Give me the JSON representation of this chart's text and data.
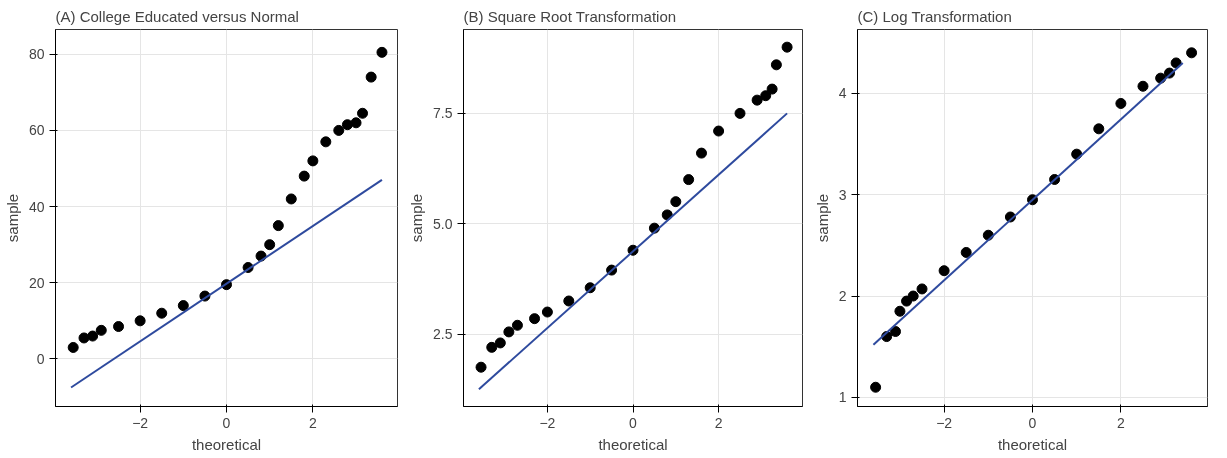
{
  "chart_data": [
    {
      "type": "scatter",
      "title": "(A) College Educated versus Normal",
      "xlabel": "theoretical",
      "ylabel": "sample",
      "xlim": [
        -3.96,
        3.96
      ],
      "ylim": [
        -12.5,
        86.5
      ],
      "xticks": [
        -2,
        0,
        2
      ],
      "yticks": [
        0,
        20,
        40,
        60,
        80
      ],
      "grid": true,
      "series": [
        {
          "marker": "circle",
          "color": "#000000",
          "x": [
            -3.55,
            -3.3,
            -3.1,
            -2.9,
            -2.5,
            -2,
            -1.5,
            -1,
            -0.5,
            0,
            0.5,
            0.8,
            1,
            1.2,
            1.5,
            1.8,
            2,
            2.3,
            2.6,
            2.8,
            3.0,
            3.15,
            3.35,
            3.6
          ],
          "values": [
            3,
            5.5,
            6,
            7.5,
            8.5,
            10,
            12,
            14,
            16.5,
            19.5,
            24,
            27,
            30,
            35,
            42,
            48,
            52,
            57,
            60,
            61.5,
            62,
            64.5,
            74,
            80.5
          ]
        },
        {
          "type": "line",
          "color": "#2e4a9e",
          "x": [
            -3.6,
            3.6
          ],
          "values": [
            -7.5,
            47
          ]
        }
      ]
    },
    {
      "type": "scatter",
      "title": "(B) Square Root Transformation",
      "xlabel": "theoretical",
      "ylabel": "sample",
      "xlim": [
        -3.96,
        3.96
      ],
      "ylim": [
        0.86,
        9.4
      ],
      "xticks": [
        -2,
        0,
        2
      ],
      "yticks": [
        2.5,
        {
          "value": 5,
          "label": "5.0"
        },
        7.5
      ],
      "grid": true,
      "series": [
        {
          "marker": "circle",
          "color": "#000000",
          "x": [
            -3.55,
            -3.3,
            -3.1,
            -2.9,
            -2.7,
            -2.3,
            -2,
            -1.5,
            -1,
            -0.5,
            0,
            0.5,
            0.8,
            1,
            1.3,
            1.6,
            2,
            2.5,
            2.9,
            3.1,
            3.25,
            3.35,
            3.6
          ],
          "values": [
            1.75,
            2.2,
            2.3,
            2.55,
            2.7,
            2.85,
            3.0,
            3.25,
            3.55,
            3.95,
            4.4,
            4.9,
            5.2,
            5.5,
            6.0,
            6.6,
            7.1,
            7.5,
            7.8,
            7.9,
            8.05,
            8.6,
            9.0
          ]
        },
        {
          "type": "line",
          "color": "#2e4a9e",
          "x": [
            -3.6,
            3.6
          ],
          "values": [
            1.25,
            7.5
          ]
        }
      ]
    },
    {
      "type": "scatter",
      "title": "(C) Log Transformation",
      "xlabel": "theoretical",
      "ylabel": "sample",
      "xlim": [
        -3.96,
        3.96
      ],
      "ylim": [
        0.91,
        4.63
      ],
      "xticks": [
        -2,
        0,
        2
      ],
      "yticks": [
        1,
        2,
        3,
        4
      ],
      "grid": true,
      "series": [
        {
          "marker": "circle",
          "color": "#000000",
          "x": [
            -3.55,
            -3.3,
            -3.1,
            -3.0,
            -2.85,
            -2.7,
            -2.5,
            -2,
            -1.5,
            -1,
            -0.5,
            0,
            0.5,
            1,
            1.5,
            2,
            2.5,
            2.9,
            3.1,
            3.25,
            3.6
          ],
          "values": [
            1.1,
            1.6,
            1.65,
            1.85,
            1.95,
            2.0,
            2.07,
            2.25,
            2.43,
            2.6,
            2.78,
            2.95,
            3.15,
            3.4,
            3.65,
            3.9,
            4.07,
            4.15,
            4.2,
            4.3,
            4.4
          ]
        },
        {
          "type": "line",
          "color": "#2e4a9e",
          "x": [
            -3.6,
            3.4
          ],
          "values": [
            1.52,
            4.3
          ]
        }
      ]
    }
  ]
}
